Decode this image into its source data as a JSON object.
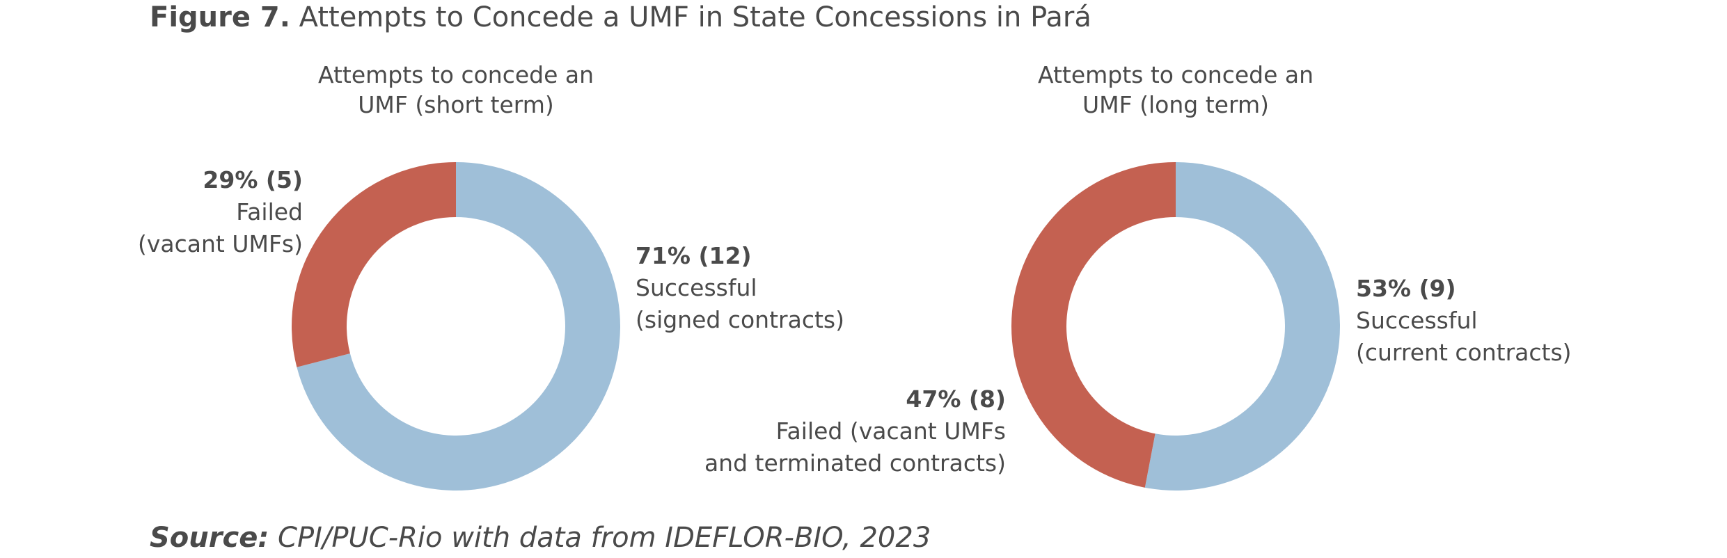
{
  "figure": {
    "label": "Figure 7.",
    "title": "Attempts to Concede a UMF in State Concessions in Pará"
  },
  "colors": {
    "failed": "#c46151",
    "successful": "#9fbfd8"
  },
  "chart_data": [
    {
      "type": "pie",
      "title_line1": "Attempts to concede an",
      "title_line2": "UMF (short term)",
      "slices": [
        {
          "label_value": "71% (12)",
          "label_line1": "Successful",
          "label_line2": "(signed contracts)",
          "percent": 71,
          "count": 12,
          "color": "#9fbfd8"
        },
        {
          "label_value": "29% (5)",
          "label_line1": "Failed",
          "label_line2": "(vacant UMFs)",
          "percent": 29,
          "count": 5,
          "color": "#c46151"
        }
      ]
    },
    {
      "type": "pie",
      "title_line1": "Attempts to concede an",
      "title_line2": "UMF (long term)",
      "slices": [
        {
          "label_value": "53% (9)",
          "label_line1": "Successful",
          "label_line2": "(current contracts)",
          "percent": 53,
          "count": 9,
          "color": "#9fbfd8"
        },
        {
          "label_value": "47% (8)",
          "label_line1": "Failed (vacant UMFs",
          "label_line2": "and terminated contracts)",
          "percent": 47,
          "count": 8,
          "color": "#c46151"
        }
      ]
    }
  ],
  "source": {
    "label": "Source:",
    "text": " CPI/PUC-Rio with data from IDEFLOR-BIO, 2023"
  }
}
